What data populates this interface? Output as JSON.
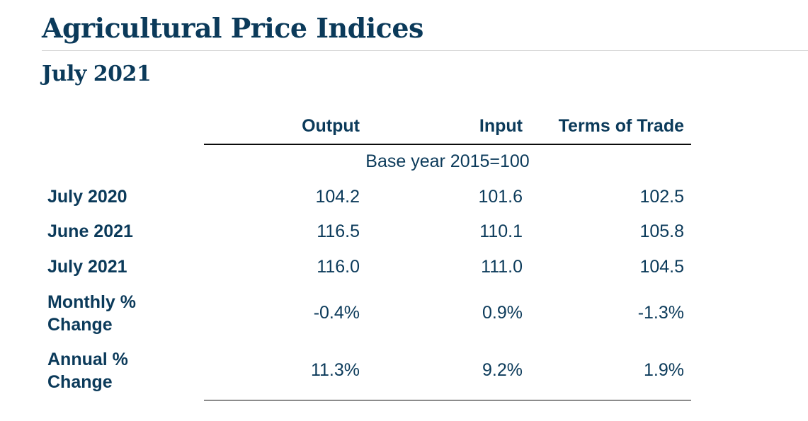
{
  "title": "Agricultural Price Indices",
  "subtitle": "July 2021",
  "table": {
    "columns": [
      "Output",
      "Input",
      "Terms of Trade"
    ],
    "base_note": "Base year 2015=100",
    "rows": [
      {
        "label": "July 2020",
        "values": [
          "104.2",
          "101.6",
          "102.5"
        ]
      },
      {
        "label": "June 2021",
        "values": [
          "116.5",
          "110.1",
          "105.8"
        ]
      },
      {
        "label": "July 2021",
        "values": [
          "116.0",
          "111.0",
          "104.5"
        ]
      },
      {
        "label": "Monthly % Change",
        "values": [
          "-0.4%",
          "0.9%",
          "-1.3%"
        ]
      },
      {
        "label": "Annual % Change",
        "values": [
          "11.3%",
          "9.2%",
          "1.9%"
        ]
      }
    ]
  },
  "colors": {
    "text": "#0b3a5a",
    "rule": "#0b0b0b",
    "title_rule": "#d6d6d6"
  }
}
